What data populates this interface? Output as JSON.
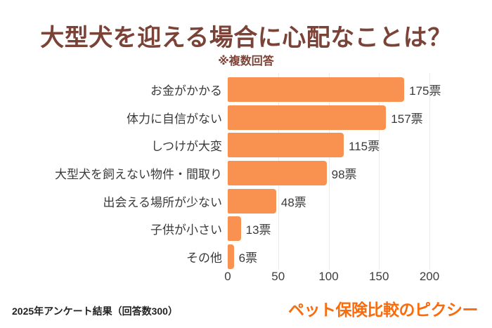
{
  "chart_data": {
    "type": "bar",
    "orientation": "horizontal",
    "title": "大型犬を迎える場合に心配なことは？",
    "subtitle": "※複数回答",
    "categories": [
      "お金がかかる",
      "体力に自信がない",
      "しつけが大変",
      "大型犬を飼えない物件・間取り",
      "出会える場所が少ない",
      "子供が小さい",
      "その他"
    ],
    "values": [
      175,
      157,
      115,
      98,
      48,
      13,
      6
    ],
    "value_labels": [
      "175票",
      "157票",
      "115票",
      "98票",
      "48票",
      "13票",
      "6票"
    ],
    "unit": "票",
    "xlim": [
      0,
      200
    ],
    "xticks": [
      0,
      50,
      100,
      150,
      200
    ],
    "grid": true,
    "legend": false,
    "bar_color": "#f99150",
    "gridline_color": "#eaeaea",
    "title_color": "#7b4337"
  },
  "footer": {
    "source": "2025年アンケート結果（回答数300）",
    "brand": "ペット保険比較のピクシー",
    "brand_color": "#fa6b0b"
  }
}
